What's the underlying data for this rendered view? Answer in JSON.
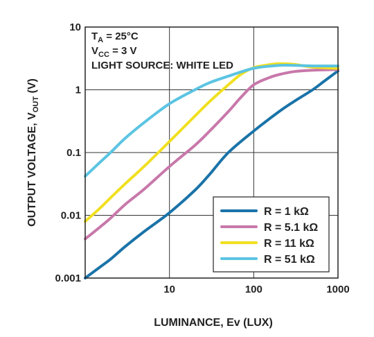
{
  "chart_data": {
    "type": "line",
    "title": "",
    "xlabel": "LUMINANCE, Ev (LUX)",
    "ylabel_main": "OUTPUT VOLTAGE, V",
    "ylabel_sub": "OUT",
    "ylabel_unit": " (V)",
    "x_scale": "log",
    "y_scale": "log",
    "xlim": [
      1,
      1000
    ],
    "ylim": [
      0.001,
      10
    ],
    "grid": true,
    "x_ticks": [
      {
        "value": 10,
        "label": "10"
      },
      {
        "value": 100,
        "label": "100"
      },
      {
        "value": 1000,
        "label": "1000"
      }
    ],
    "y_ticks": [
      {
        "value": 0.001,
        "label": "0.001"
      },
      {
        "value": 0.01,
        "label": "0.01"
      },
      {
        "value": 0.1,
        "label": "0.1"
      },
      {
        "value": 1,
        "label": "1"
      },
      {
        "value": 10,
        "label": "10"
      }
    ],
    "conditions": {
      "line1": {
        "main": "T",
        "sub": "A",
        "rest": " = 25°C"
      },
      "line2": {
        "main": "V",
        "sub": "CC",
        "rest": " = 3 V"
      },
      "line3": "LIGHT SOURCE: WHITE LED"
    },
    "legend_position": "bottom-right",
    "series": [
      {
        "name": "R = 1 kΩ",
        "color": "#1a73a8",
        "points": [
          [
            1,
            0.001
          ],
          [
            1.5,
            0.0015
          ],
          [
            2,
            0.002
          ],
          [
            3,
            0.0032
          ],
          [
            5,
            0.0055
          ],
          [
            10,
            0.011
          ],
          [
            20,
            0.025
          ],
          [
            30,
            0.045
          ],
          [
            50,
            0.1
          ],
          [
            100,
            0.22
          ],
          [
            200,
            0.45
          ],
          [
            300,
            0.65
          ],
          [
            500,
            1.0
          ],
          [
            700,
            1.4
          ],
          [
            1000,
            2.0
          ]
        ]
      },
      {
        "name": "R = 5.1 kΩ",
        "color": "#c878aa",
        "points": [
          [
            1,
            0.0042
          ],
          [
            1.5,
            0.0065
          ],
          [
            2,
            0.009
          ],
          [
            3,
            0.015
          ],
          [
            5,
            0.026
          ],
          [
            10,
            0.06
          ],
          [
            20,
            0.13
          ],
          [
            30,
            0.22
          ],
          [
            50,
            0.45
          ],
          [
            70,
            0.75
          ],
          [
            100,
            1.2
          ],
          [
            150,
            1.55
          ],
          [
            200,
            1.75
          ],
          [
            300,
            1.95
          ],
          [
            500,
            2.05
          ],
          [
            1000,
            2.1
          ]
        ]
      },
      {
        "name": "R = 11 kΩ",
        "color": "#f0e020",
        "points": [
          [
            1,
            0.008
          ],
          [
            1.5,
            0.013
          ],
          [
            2,
            0.019
          ],
          [
            3,
            0.032
          ],
          [
            5,
            0.06
          ],
          [
            10,
            0.15
          ],
          [
            20,
            0.38
          ],
          [
            30,
            0.65
          ],
          [
            50,
            1.2
          ],
          [
            70,
            1.75
          ],
          [
            100,
            2.25
          ],
          [
            150,
            2.5
          ],
          [
            200,
            2.6
          ],
          [
            300,
            2.55
          ],
          [
            500,
            2.3
          ],
          [
            1000,
            2.2
          ]
        ]
      },
      {
        "name": "R = 51 kΩ",
        "color": "#5bc4e2",
        "points": [
          [
            1,
            0.042
          ],
          [
            1.5,
            0.07
          ],
          [
            2,
            0.1
          ],
          [
            3,
            0.17
          ],
          [
            5,
            0.3
          ],
          [
            10,
            0.6
          ],
          [
            20,
            1.0
          ],
          [
            30,
            1.3
          ],
          [
            50,
            1.65
          ],
          [
            100,
            2.2
          ],
          [
            200,
            2.45
          ],
          [
            300,
            2.45
          ],
          [
            500,
            2.4
          ],
          [
            1000,
            2.4
          ]
        ]
      }
    ]
  }
}
